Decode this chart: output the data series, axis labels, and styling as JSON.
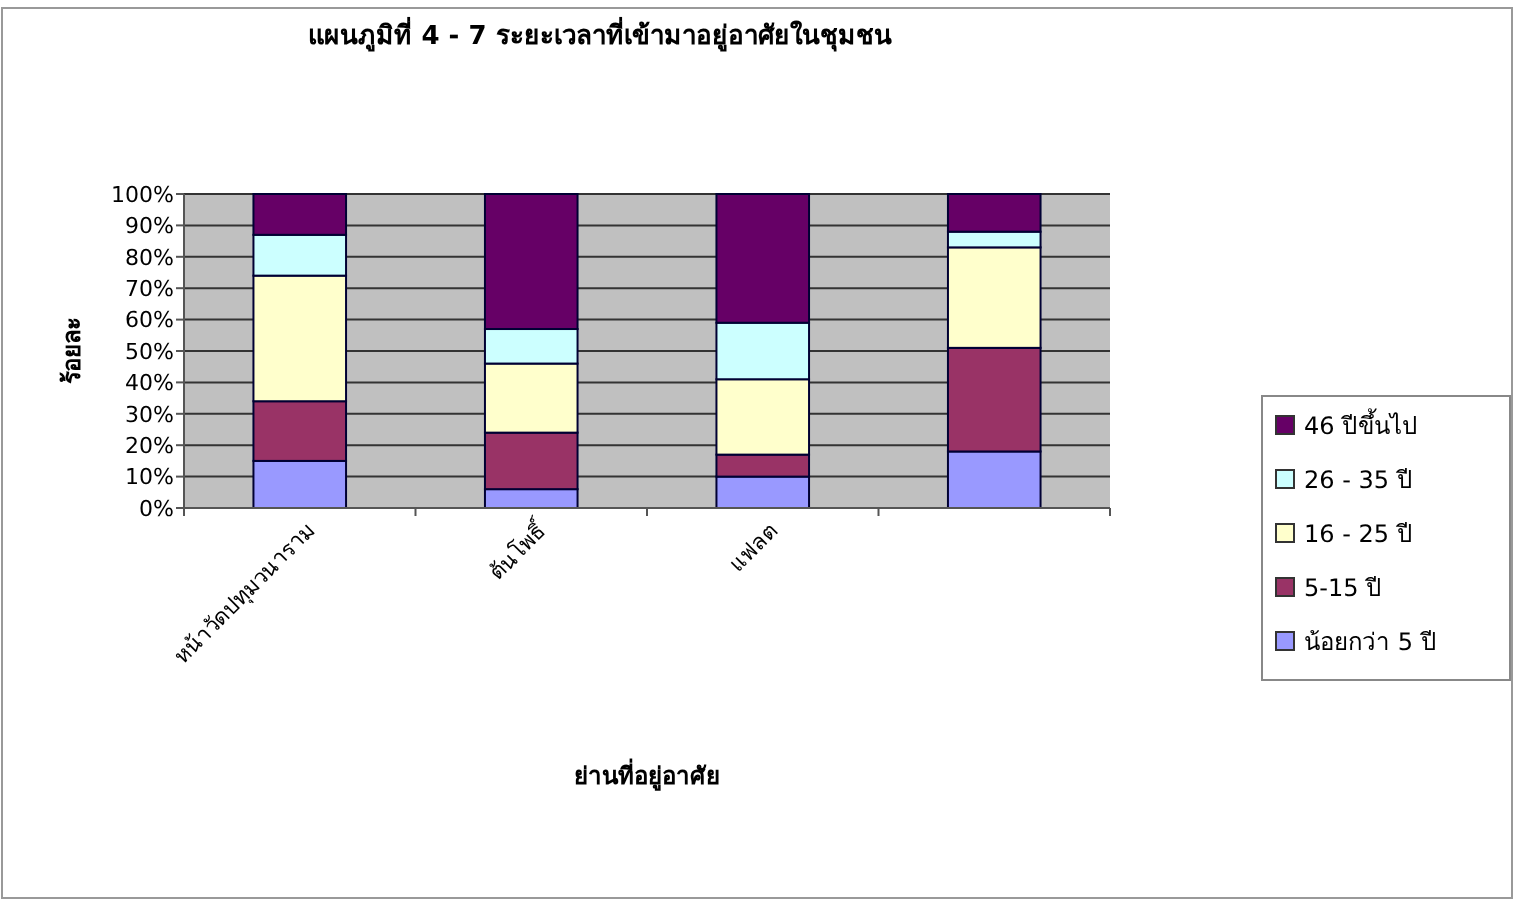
{
  "chart_data": {
    "type": "bar",
    "stacked": true,
    "title": "แผนภูมิที่ 4 - 7 ระยะเวลาที่เข้ามาอยู่อาศัยในชุมชน",
    "xlabel": "ย่านที่อยู่อาศัย",
    "ylabel": "ร้อยละ",
    "categories": [
      "หน้าวัดปทุมวนาราม",
      "ต้นโพธิ์",
      "แฟลต",
      null
    ],
    "series": [
      {
        "name": "น้อยกว่า 5 ปี",
        "color": "#9999ff",
        "values": [
          15,
          6,
          10,
          18
        ]
      },
      {
        "name": "5-15 ปี",
        "color": "#993366",
        "values": [
          19,
          18,
          7,
          33
        ]
      },
      {
        "name": "16 - 25 ปี",
        "color": "#ffffcc",
        "values": [
          40,
          22,
          24,
          32
        ]
      },
      {
        "name": "26 - 35 ปี",
        "color": "#ccffff",
        "values": [
          13,
          11,
          18,
          5
        ]
      },
      {
        "name": "46 ปีขึ้นไป",
        "color": "#660066",
        "values": [
          13,
          43,
          41,
          12
        ]
      }
    ],
    "ylim": [
      0,
      100
    ],
    "yticks": [
      {
        "value": 0,
        "label": "0%"
      },
      {
        "value": 10,
        "label": "10%"
      },
      {
        "value": 20,
        "label": "20%"
      },
      {
        "value": 30,
        "label": "30%"
      },
      {
        "value": 40,
        "label": "40%"
      },
      {
        "value": 50,
        "label": "50%"
      },
      {
        "value": 60,
        "label": "60%"
      },
      {
        "value": 70,
        "label": "70%"
      },
      {
        "value": 80,
        "label": "80%"
      },
      {
        "value": 90,
        "label": "90%"
      },
      {
        "value": 100,
        "label": "100%"
      }
    ],
    "grid": "y",
    "legend": "right"
  }
}
